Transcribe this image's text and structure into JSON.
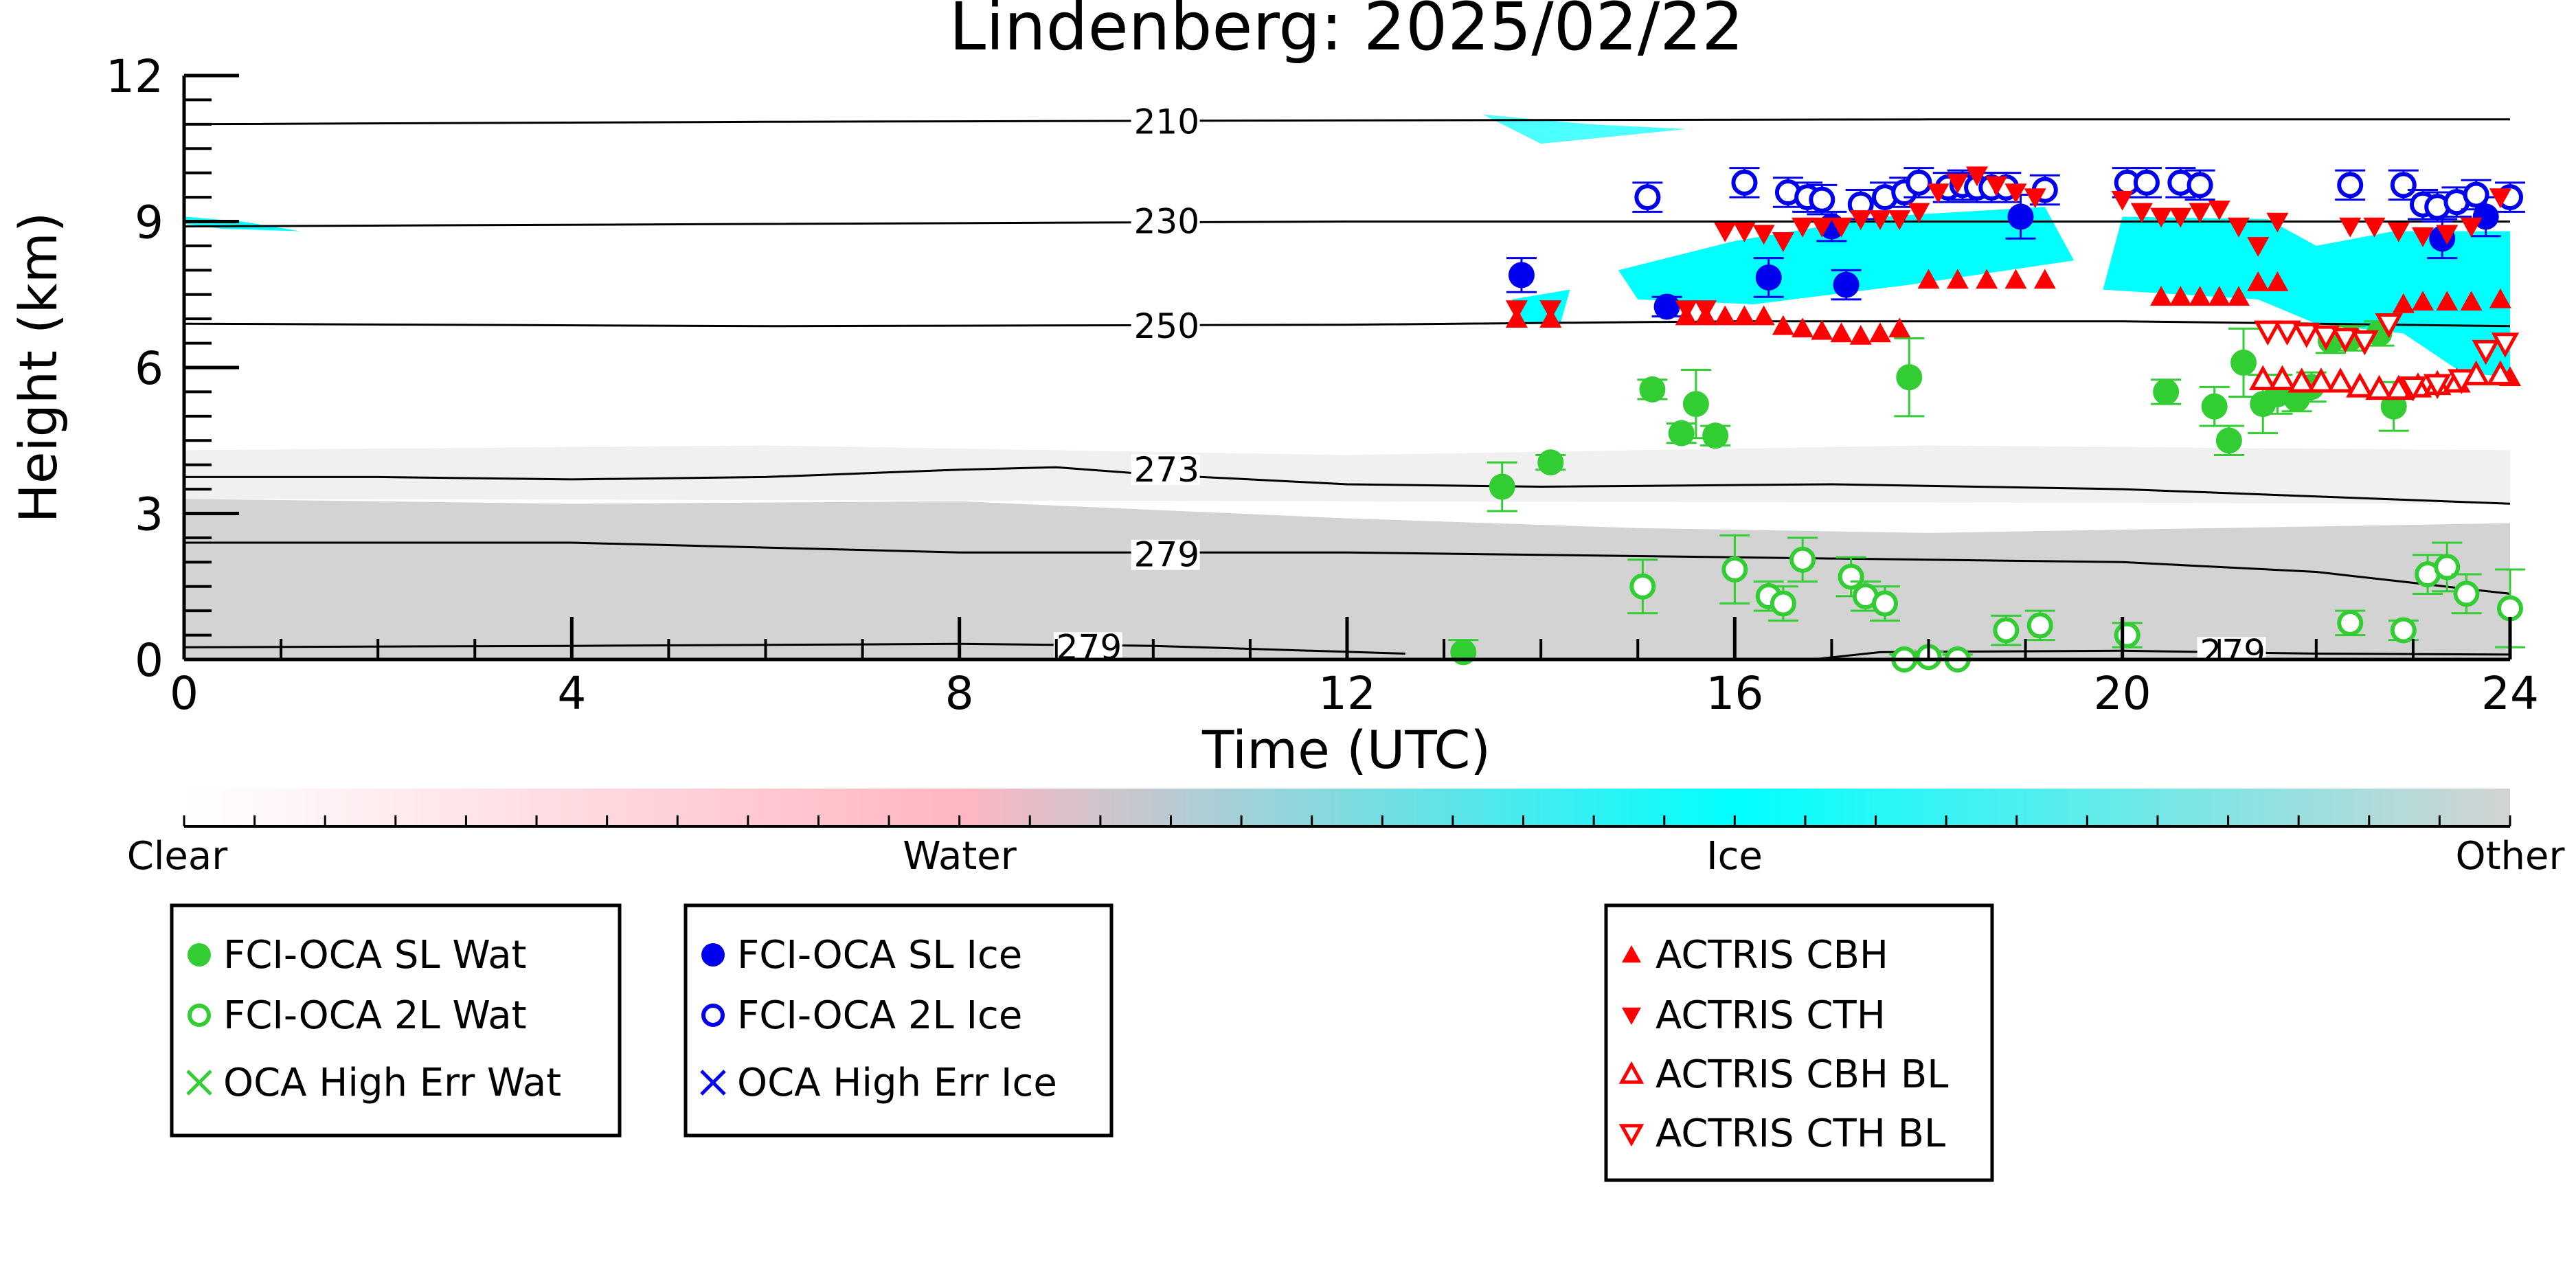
{
  "chart_data": {
    "type": "scatter",
    "title": "Lindenberg: 2025/02/22",
    "xlabel": "Time (UTC)",
    "ylabel": "Height (km)",
    "xlim": [
      0,
      24
    ],
    "ylim": [
      0,
      12
    ],
    "xticks": [
      "0",
      "4",
      "8",
      "12",
      "16",
      "20",
      "24"
    ],
    "yticks": [
      "0",
      "3",
      "6",
      "9",
      "12"
    ],
    "grid": false,
    "isotherms": [
      {
        "label": "210",
        "label_at": [
          9.8,
          11.05
        ],
        "points": [
          [
            0,
            11.0
          ],
          [
            6,
            11.05
          ],
          [
            12,
            11.08
          ],
          [
            18,
            11.1
          ],
          [
            24,
            11.1
          ]
        ]
      },
      {
        "label": "230",
        "label_at": [
          9.8,
          9.0
        ],
        "points": [
          [
            0,
            8.9
          ],
          [
            6,
            8.95
          ],
          [
            12,
            9.0
          ],
          [
            18,
            9.0
          ],
          [
            24,
            9.0
          ]
        ]
      },
      {
        "label": "250",
        "label_at": [
          9.8,
          6.85
        ],
        "points": [
          [
            0,
            6.9
          ],
          [
            6,
            6.85
          ],
          [
            12,
            6.88
          ],
          [
            16,
            6.95
          ],
          [
            20,
            6.95
          ],
          [
            24,
            6.85
          ]
        ]
      },
      {
        "label": "273",
        "label_at": [
          9.8,
          3.9
        ],
        "points": [
          [
            0,
            3.75
          ],
          [
            2,
            3.75
          ],
          [
            4,
            3.7
          ],
          [
            6,
            3.75
          ],
          [
            8,
            3.9
          ],
          [
            9,
            3.95
          ],
          [
            10,
            3.8
          ],
          [
            12,
            3.6
          ],
          [
            14,
            3.55
          ],
          [
            17,
            3.6
          ],
          [
            20,
            3.5
          ],
          [
            24,
            3.2
          ]
        ]
      },
      {
        "label": "279",
        "label_at": [
          9.8,
          2.15
        ],
        "points": [
          [
            0,
            2.4
          ],
          [
            4,
            2.4
          ],
          [
            8,
            2.2
          ],
          [
            12,
            2.2
          ],
          [
            16,
            2.1
          ],
          [
            20,
            2.0
          ],
          [
            22,
            1.8
          ],
          [
            24,
            1.35
          ]
        ]
      },
      {
        "label": "279",
        "label_at": [
          9.0,
          0.25
        ],
        "points": [
          [
            0,
            0.25
          ],
          [
            4,
            0.28
          ],
          [
            8,
            0.32
          ],
          [
            10,
            0.28
          ],
          [
            12.6,
            0.12
          ]
        ]
      },
      {
        "label": "279",
        "label_at": [
          20.8,
          0.15
        ],
        "points": [
          [
            16.8,
            0.0
          ],
          [
            17.5,
            0.15
          ],
          [
            20,
            0.18
          ],
          [
            22,
            0.12
          ],
          [
            24,
            0.1
          ]
        ]
      }
    ],
    "colorbar": {
      "labels": [
        "Clear",
        "Water",
        "Ice",
        "Other"
      ],
      "colors": [
        "#ffffff",
        "#ffb6c1",
        "#00ffff",
        "#d3d3d3"
      ]
    },
    "series": [
      {
        "name": "FCI-OCA SL Wat",
        "marker": "filled-circle",
        "color": "#32cd32",
        "points": [
          [
            13.2,
            0.15,
            0.25
          ],
          [
            13.6,
            3.55,
            0.5
          ],
          [
            14.1,
            4.05,
            0.15
          ],
          [
            15.15,
            5.55,
            0.2
          ],
          [
            15.45,
            4.65,
            0.2
          ],
          [
            15.6,
            5.25,
            0.7
          ],
          [
            15.8,
            4.6,
            0.2
          ],
          [
            17.8,
            5.8,
            0.8
          ],
          [
            20.45,
            5.5,
            0.25
          ],
          [
            20.95,
            5.2,
            0.4
          ],
          [
            21.1,
            4.5,
            0.3
          ],
          [
            21.25,
            6.1,
            0.7
          ],
          [
            21.45,
            5.25,
            0.6
          ],
          [
            21.6,
            5.45,
            0.4
          ],
          [
            21.8,
            5.35,
            0.25
          ],
          [
            21.95,
            5.6,
            0.3
          ],
          [
            22.15,
            6.55,
            0.25
          ],
          [
            22.35,
            6.6,
            0.25
          ],
          [
            22.65,
            6.7,
            0.25
          ],
          [
            22.8,
            5.2,
            0.5
          ]
        ]
      },
      {
        "name": "FCI-OCA 2L Wat",
        "marker": "open-circle",
        "color": "#32cd32",
        "points": [
          [
            15.05,
            1.5,
            0.55
          ],
          [
            16.0,
            1.85,
            0.7
          ],
          [
            16.35,
            1.3,
            0.3
          ],
          [
            16.5,
            1.15,
            0.35
          ],
          [
            16.7,
            2.05,
            0.45
          ],
          [
            17.2,
            1.7,
            0.4
          ],
          [
            17.35,
            1.3,
            0.3
          ],
          [
            17.55,
            1.15,
            0.35
          ],
          [
            17.75,
            0.0,
            0.1
          ],
          [
            18.0,
            0.05,
            0.1
          ],
          [
            18.3,
            0.0,
            0.1
          ],
          [
            18.8,
            0.6,
            0.3
          ],
          [
            19.15,
            0.7,
            0.3
          ],
          [
            20.05,
            0.5,
            0.25
          ],
          [
            22.35,
            0.75,
            0.25
          ],
          [
            22.9,
            0.6,
            0.2
          ],
          [
            23.15,
            1.75,
            0.4
          ],
          [
            23.35,
            1.9,
            0.5
          ],
          [
            23.55,
            1.35,
            0.4
          ],
          [
            24.0,
            1.05,
            0.8
          ]
        ]
      },
      {
        "name": "OCA High Err Wat",
        "marker": "x",
        "color": "#32cd32",
        "points": []
      },
      {
        "name": "FCI-OCA SL Ice",
        "marker": "filled-circle",
        "color": "#0000ee",
        "points": [
          [
            13.8,
            7.9,
            0.35
          ],
          [
            15.3,
            7.25,
            0.2
          ],
          [
            16.35,
            7.85,
            0.4
          ],
          [
            17.0,
            8.9,
            0.3
          ],
          [
            17.15,
            7.7,
            0.3
          ],
          [
            18.95,
            9.1,
            0.45
          ],
          [
            23.3,
            8.65,
            0.4
          ],
          [
            23.75,
            9.1,
            0.4
          ]
        ]
      },
      {
        "name": "FCI-OCA 2L Ice",
        "marker": "open-circle",
        "color": "#0000ee",
        "points": [
          [
            15.1,
            9.5,
            0.3
          ],
          [
            16.1,
            9.8,
            0.3
          ],
          [
            16.55,
            9.6,
            0.3
          ],
          [
            16.75,
            9.5,
            0.3
          ],
          [
            16.9,
            9.45,
            0.3
          ],
          [
            17.3,
            9.35,
            0.3
          ],
          [
            17.55,
            9.5,
            0.3
          ],
          [
            17.75,
            9.6,
            0.3
          ],
          [
            17.9,
            9.8,
            0.3
          ],
          [
            18.2,
            9.7,
            0.3
          ],
          [
            18.35,
            9.75,
            0.3
          ],
          [
            18.5,
            9.7,
            0.3
          ],
          [
            18.65,
            9.7,
            0.3
          ],
          [
            18.8,
            9.7,
            0.3
          ],
          [
            19.2,
            9.65,
            0.3
          ],
          [
            20.05,
            9.8,
            0.3
          ],
          [
            20.25,
            9.8,
            0.3
          ],
          [
            20.6,
            9.8,
            0.3
          ],
          [
            20.8,
            9.75,
            0.3
          ],
          [
            22.35,
            9.75,
            0.3
          ],
          [
            22.9,
            9.75,
            0.3
          ],
          [
            23.1,
            9.35,
            0.3
          ],
          [
            23.25,
            9.3,
            0.3
          ],
          [
            23.45,
            9.4,
            0.3
          ],
          [
            23.65,
            9.55,
            0.3
          ],
          [
            24.0,
            9.5,
            0.3
          ]
        ]
      },
      {
        "name": "OCA High Err Ice",
        "marker": "x",
        "color": "#0000ee",
        "points": []
      },
      {
        "name": "ACTRIS CBH",
        "marker": "triangle-up",
        "color": "#ff0000",
        "points": [
          [
            13.75,
            7.0
          ],
          [
            14.1,
            7.0
          ],
          [
            15.5,
            7.05
          ],
          [
            15.7,
            7.05
          ],
          [
            15.9,
            7.05
          ],
          [
            16.1,
            7.05
          ],
          [
            16.3,
            7.05
          ],
          [
            16.5,
            6.85
          ],
          [
            16.7,
            6.8
          ],
          [
            16.9,
            6.75
          ],
          [
            17.1,
            6.7
          ],
          [
            17.3,
            6.65
          ],
          [
            17.5,
            6.7
          ],
          [
            17.7,
            6.8
          ],
          [
            18.0,
            7.8
          ],
          [
            18.3,
            7.8
          ],
          [
            18.6,
            7.8
          ],
          [
            18.9,
            7.8
          ],
          [
            19.2,
            7.8
          ],
          [
            20.4,
            7.45
          ],
          [
            20.6,
            7.45
          ],
          [
            20.8,
            7.45
          ],
          [
            21.0,
            7.45
          ],
          [
            21.2,
            7.45
          ],
          [
            21.4,
            7.75
          ],
          [
            21.6,
            7.75
          ],
          [
            22.9,
            7.3
          ],
          [
            23.1,
            7.35
          ],
          [
            23.35,
            7.35
          ],
          [
            23.6,
            7.35
          ],
          [
            23.9,
            7.4
          ],
          [
            24.0,
            5.8
          ]
        ]
      },
      {
        "name": "ACTRIS CTH",
        "marker": "triangle-down",
        "color": "#ff0000",
        "points": [
          [
            13.75,
            7.2
          ],
          [
            14.1,
            7.2
          ],
          [
            15.5,
            7.2
          ],
          [
            15.7,
            7.2
          ],
          [
            15.9,
            8.8
          ],
          [
            16.1,
            8.8
          ],
          [
            16.3,
            8.75
          ],
          [
            16.5,
            8.6
          ],
          [
            16.7,
            8.9
          ],
          [
            16.9,
            8.9
          ],
          [
            17.1,
            8.9
          ],
          [
            17.3,
            9.05
          ],
          [
            17.5,
            9.05
          ],
          [
            17.7,
            9.05
          ],
          [
            17.9,
            9.2
          ],
          [
            18.1,
            9.6
          ],
          [
            18.3,
            9.8
          ],
          [
            18.5,
            9.95
          ],
          [
            18.7,
            9.75
          ],
          [
            18.9,
            9.6
          ],
          [
            19.1,
            9.5
          ],
          [
            20.0,
            9.45
          ],
          [
            20.2,
            9.2
          ],
          [
            20.4,
            9.1
          ],
          [
            20.6,
            9.1
          ],
          [
            20.8,
            9.2
          ],
          [
            21.0,
            9.25
          ],
          [
            21.2,
            8.9
          ],
          [
            21.4,
            8.5
          ],
          [
            21.6,
            9.0
          ],
          [
            22.35,
            8.9
          ],
          [
            22.6,
            8.9
          ],
          [
            22.85,
            8.8
          ],
          [
            23.1,
            8.7
          ],
          [
            23.35,
            8.75
          ],
          [
            23.6,
            8.9
          ],
          [
            23.9,
            9.5
          ]
        ]
      },
      {
        "name": "ACTRIS CBH BL",
        "marker": "open-triangle-up",
        "color": "#ff0000",
        "points": [
          [
            21.45,
            5.75
          ],
          [
            21.65,
            5.75
          ],
          [
            21.85,
            5.7
          ],
          [
            22.05,
            5.7
          ],
          [
            22.25,
            5.7
          ],
          [
            22.45,
            5.6
          ],
          [
            22.65,
            5.55
          ],
          [
            22.85,
            5.55
          ],
          [
            23.05,
            5.6
          ],
          [
            23.25,
            5.65
          ],
          [
            23.45,
            5.7
          ],
          [
            23.65,
            5.85
          ],
          [
            23.9,
            5.85
          ]
        ]
      },
      {
        "name": "ACTRIS CTH BL",
        "marker": "open-triangle-down",
        "color": "#ff0000",
        "points": [
          [
            21.5,
            6.75
          ],
          [
            21.7,
            6.75
          ],
          [
            21.9,
            6.7
          ],
          [
            22.1,
            6.65
          ],
          [
            22.3,
            6.6
          ],
          [
            22.5,
            6.55
          ],
          [
            22.75,
            6.9
          ],
          [
            23.0,
            5.6
          ],
          [
            23.25,
            5.65
          ],
          [
            23.5,
            5.75
          ],
          [
            23.75,
            6.35
          ],
          [
            23.95,
            6.5
          ]
        ]
      }
    ],
    "legends": [
      {
        "items": [
          "FCI-OCA SL Wat",
          "FCI-OCA 2L Wat",
          "OCA High Err Wat"
        ]
      },
      {
        "items": [
          "FCI-OCA SL Ice",
          "FCI-OCA 2L Ice",
          "OCA High Err Ice"
        ]
      },
      {
        "items": [
          "ACTRIS CBH",
          "ACTRIS CTH",
          "ACTRIS CBH BL",
          "ACTRIS CTH BL"
        ]
      }
    ]
  }
}
